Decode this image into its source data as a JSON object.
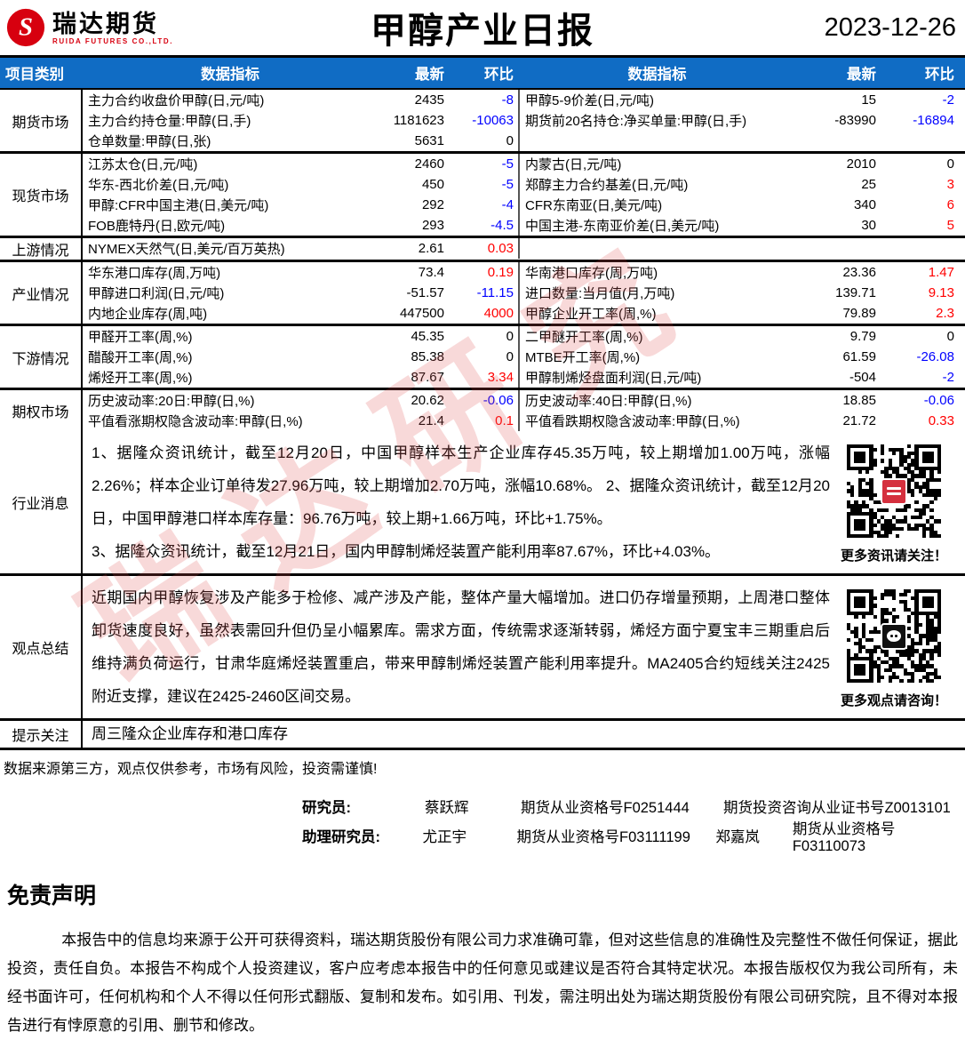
{
  "header": {
    "logo_cn": "瑞达期货",
    "logo_en": "RUIDA FUTURES CO.,LTD.",
    "title": "甲醇产业日报",
    "date": "2023-12-26"
  },
  "watermark": "瑞达研究",
  "table": {
    "columns": {
      "category": "项目类别",
      "indicator": "数据指标",
      "latest": "最新",
      "change": "环比"
    },
    "sections": [
      {
        "category": "期货市场",
        "rows": [
          {
            "l_indicator": "主力合约收盘价甲醇(日,元/吨)",
            "l_latest": "2435",
            "l_change": "-8",
            "r_indicator": "甲醇5-9价差(日,元/吨)",
            "r_latest": "15",
            "r_change": "-2"
          },
          {
            "l_indicator": "主力合约持仓量:甲醇(日,手)",
            "l_latest": "1181623",
            "l_change": "-10063",
            "r_indicator": "期货前20名持仓:净买单量:甲醇(日,手)",
            "r_latest": "-83990",
            "r_change": "-16894"
          },
          {
            "l_indicator": "仓单数量:甲醇(日,张)",
            "l_latest": "5631",
            "l_change": "0",
            "r_indicator": "",
            "r_latest": "",
            "r_change": ""
          }
        ]
      },
      {
        "category": "现货市场",
        "rows": [
          {
            "l_indicator": "江苏太仓(日,元/吨)",
            "l_latest": "2460",
            "l_change": "-5",
            "r_indicator": "内蒙古(日,元/吨)",
            "r_latest": "2010",
            "r_change": "0"
          },
          {
            "l_indicator": "华东-西北价差(日,元/吨)",
            "l_latest": "450",
            "l_change": "-5",
            "r_indicator": "郑醇主力合约基差(日,元/吨)",
            "r_latest": "25",
            "r_change": "3"
          },
          {
            "l_indicator": "甲醇:CFR中国主港(日,美元/吨)",
            "l_latest": "292",
            "l_change": "-4",
            "r_indicator": "CFR东南亚(日,美元/吨)",
            "r_latest": "340",
            "r_change": "6"
          },
          {
            "l_indicator": "FOB鹿特丹(日,欧元/吨)",
            "l_latest": "293",
            "l_change": "-4.5",
            "r_indicator": "中国主港-东南亚价差(日,美元/吨)",
            "r_latest": "30",
            "r_change": "5"
          }
        ]
      },
      {
        "category": "上游情况",
        "rows": [
          {
            "l_indicator": "NYMEX天然气(日,美元/百万英热)",
            "l_latest": "2.61",
            "l_change": "0.03",
            "r_indicator": "",
            "r_latest": "",
            "r_change": ""
          }
        ]
      },
      {
        "category": "产业情况",
        "rows": [
          {
            "l_indicator": "华东港口库存(周,万吨)",
            "l_latest": "73.4",
            "l_change": "0.19",
            "r_indicator": "华南港口库存(周,万吨)",
            "r_latest": "23.36",
            "r_change": "1.47"
          },
          {
            "l_indicator": "甲醇进口利润(日,元/吨)",
            "l_latest": "-51.57",
            "l_change": "-11.15",
            "r_indicator": "进口数量:当月值(月,万吨)",
            "r_latest": "139.71",
            "r_change": "9.13"
          },
          {
            "l_indicator": "内地企业库存(周,吨)",
            "l_latest": "447500",
            "l_change": "4000",
            "r_indicator": "甲醇企业开工率(周,%)",
            "r_latest": "79.89",
            "r_change": "2.3"
          }
        ]
      },
      {
        "category": "下游情况",
        "rows": [
          {
            "l_indicator": "甲醛开工率(周,%)",
            "l_latest": "45.35",
            "l_change": "0",
            "r_indicator": "二甲醚开工率(周,%)",
            "r_latest": "9.79",
            "r_change": "0"
          },
          {
            "l_indicator": "醋酸开工率(周,%)",
            "l_latest": "85.38",
            "l_change": "0",
            "r_indicator": "MTBE开工率(周,%)",
            "r_latest": "61.59",
            "r_change": "-26.08"
          },
          {
            "l_indicator": "烯烃开工率(周,%)",
            "l_latest": "87.67",
            "l_change": "3.34",
            "r_indicator": "甲醇制烯烃盘面利润(日,元/吨)",
            "r_latest": "-504",
            "r_change": "-2"
          }
        ]
      },
      {
        "category": "期权市场",
        "rows": [
          {
            "l_indicator": "历史波动率:20日:甲醇(日,%)",
            "l_latest": "20.62",
            "l_change": "-0.06",
            "r_indicator": "历史波动率:40日:甲醇(日,%)",
            "r_latest": "18.85",
            "r_change": "-0.06"
          },
          {
            "l_indicator": "平值看涨期权隐含波动率:甲醇(日,%)",
            "l_latest": "21.4",
            "l_change": "0.1",
            "r_indicator": "平值看跌期权隐含波动率:甲醇(日,%)",
            "r_latest": "21.72",
            "r_change": "0.33"
          }
        ]
      }
    ]
  },
  "news": {
    "category": "行业消息",
    "p1": "1、据隆众资讯统计，截至12月20日，中国甲醇样本生产企业库存45.35万吨，较上期增加1.00万吨，涨幅2.26%；样本企业订单待发27.96万吨，较上期增加2.70万吨，涨幅10.68%。 2、据隆众资讯统计，截至12月20日，中国甲醇港口样本库存量：96.76万吨，较上期+1.66万吨，环比+1.75%。",
    "p2": "3、据隆众资讯统计，截至12月21日，国内甲醇制烯烃装置产能利用率87.67%，环比+4.03%。",
    "qr_caption": "更多资讯请关注！"
  },
  "summary": {
    "category": "观点总结",
    "text": "近期国内甲醇恢复涉及产能多于检修、减产涉及产能，整体产量大幅增加。进口仍存增量预期，上周港口整体卸货速度良好，虽然表需回升但仍呈小幅累库。需求方面，传统需求逐渐转弱，烯烃方面宁夏宝丰三期重启后维持满负荷运行，甘肃华庭烯烃装置重启，带来甲醇制烯烃装置产能利用率提升。MA2405合约短线关注2425附近支撑，建议在2425-2460区间交易。",
    "qr_caption": "更多观点请咨询！"
  },
  "reminder": {
    "category": "提示关注",
    "text": "周三隆众企业库存和港口库存"
  },
  "footnote": "数据来源第三方，观点仅供参考，市场有风险，投资需谨慎!",
  "staff": {
    "researcher_label": "研究员:",
    "researcher_name": "蔡跃辉",
    "researcher_cert": "期货从业资格号F0251444",
    "researcher_cert2": "期货投资咨询从业证书号Z0013101",
    "assistant_label": "助理研究员:",
    "assistant1_name": "尤正宇",
    "assistant1_cert": "期货从业资格号F03111199",
    "assistant2_name": "郑嘉岚",
    "assistant2_cert": "期货从业资格号F03110073"
  },
  "legal": {
    "heading": "免责声明",
    "body": "本报告中的信息均来源于公开可获得资料，瑞达期货股份有限公司力求准确可靠，但对这些信息的准确性及完整性不做任何保证，据此投资，责任自负。本报告不构成个人投资建议，客户应考虑本报告中的任何意见或建议是否符合其特定状况。本报告版权仅为我公司所有，未经书面许可，任何机构和个人不得以任何形式翻版、复制和发布。如引用、刊发，需注明出处为瑞达期货股份有限公司研究院，且不得对本报告进行有悖原意的引用、删节和修改。"
  },
  "colors": {
    "header_blue": "#106cc4",
    "brand_red": "#d7000f",
    "positive_change": "#ff0000",
    "negative_change": "#0000ff"
  }
}
